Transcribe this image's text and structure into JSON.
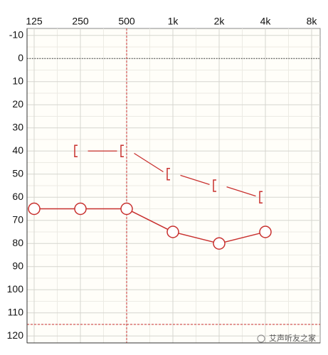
{
  "chart_data": {
    "type": "audiogram",
    "categories": [
      "125",
      "250",
      "500",
      "1k",
      "2k",
      "4k",
      "8k"
    ],
    "series": [
      {
        "marker": "circle",
        "color": "#c8302e",
        "values": [
          65,
          65,
          65,
          75,
          80,
          75,
          null
        ]
      },
      {
        "marker": "bracket",
        "color": "#c8302e",
        "values": [
          null,
          40,
          40,
          50,
          55,
          60,
          null
        ]
      }
    ],
    "ylim": [
      -13,
      123
    ],
    "y_inverted": true,
    "yticks": [
      -10,
      0,
      10,
      20,
      30,
      40,
      50,
      60,
      70,
      80,
      90,
      100,
      110,
      120
    ],
    "grid": true,
    "y_reference_lines": [
      {
        "value": 0,
        "style": "dotted",
        "color": "#333333"
      },
      {
        "value": 115,
        "style": "dashed",
        "color": "#c8302e"
      }
    ],
    "x_reference_line": {
      "category": "500",
      "style": "dashed",
      "color": "#c8302e"
    },
    "watermark": "艾声听友之家"
  }
}
